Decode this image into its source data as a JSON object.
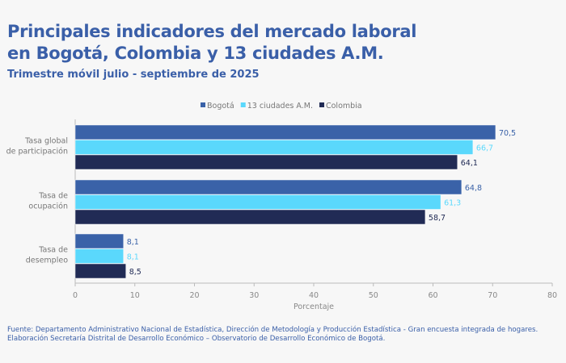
{
  "header": {
    "title_line1": "Principales indicadores del mercado laboral",
    "title_line2": "en Bogotá, Colombia y 13 ciudades A.M.",
    "subtitle": "Trimestre móvil julio - septiembre de 2025"
  },
  "footer": {
    "line1": "Fuente: Departamento Administrativo Nacional de Estadística, Dirección de Metodología y Producción Estadística - Gran encuesta integrada de hogares.",
    "line2": "Elaboración Secretaría Distrital de Desarrollo Económico – Observatorio de Desarrollo Económico de Bogotá."
  },
  "chart_data": {
    "type": "bar",
    "orientation": "horizontal",
    "categories": [
      [
        "Tasa global",
        "de participación"
      ],
      [
        "Tasa de",
        "ocupación"
      ],
      [
        "Tasa de",
        "desempleo"
      ]
    ],
    "series": [
      {
        "name": "Bogotá",
        "color": "#3a62a8",
        "values": [
          70.5,
          64.8,
          8.1
        ],
        "labels": [
          "70,5",
          "64,8",
          "8,1"
        ]
      },
      {
        "name": "13 ciudades A.M.",
        "color": "#5ad8fc",
        "values": [
          66.7,
          61.3,
          8.1
        ],
        "labels": [
          "66,7",
          "61,3",
          "8,1"
        ]
      },
      {
        "name": "Colombia",
        "color": "#212b55",
        "values": [
          64.1,
          58.7,
          8.5
        ],
        "labels": [
          "64,1",
          "58,7",
          "8,5"
        ]
      }
    ],
    "xlabel": "Porcentaje",
    "xlim": [
      0,
      80
    ],
    "xticks": [
      0,
      10,
      20,
      30,
      40,
      50,
      60,
      70,
      80
    ],
    "legend": "top-center",
    "grid": false
  }
}
